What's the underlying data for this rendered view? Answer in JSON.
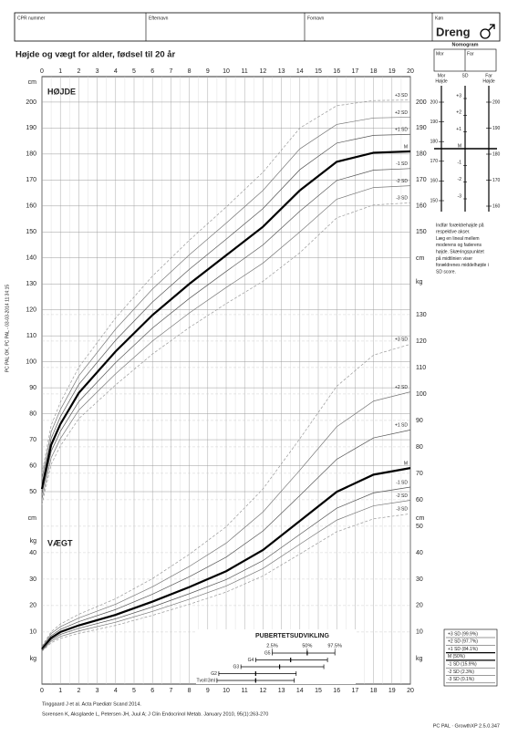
{
  "header": {
    "fields": [
      "CPR nummer",
      "Efternavn",
      "Fornavn",
      "Køn"
    ],
    "sex": "Dreng"
  },
  "title": "Højde og vægt for alder, fødsel til 20 år",
  "side_note": "PC PAL OK, PC PAL - 03-03-2014 11:34:15",
  "chart_data": [
    {
      "type": "line",
      "label": "HØJDE",
      "y_unit": "cm",
      "x": [
        0,
        0.5,
        1,
        2,
        4,
        6,
        8,
        10,
        12,
        14,
        16,
        18,
        20
      ],
      "xlim": [
        0,
        20
      ],
      "xticks": [
        0,
        1,
        2,
        3,
        4,
        5,
        6,
        7,
        8,
        9,
        10,
        11,
        12,
        13,
        14,
        15,
        16,
        17,
        18,
        19,
        20
      ],
      "ylim": [
        -23.4,
        208.4
      ],
      "yticks": [
        50,
        60,
        70,
        80,
        90,
        100,
        110,
        120,
        130,
        140,
        150,
        160,
        170,
        180,
        190,
        200
      ],
      "yticks_right": [
        150,
        160,
        170,
        180,
        190,
        200
      ],
      "grid": true,
      "series": [
        {
          "name": "+3 SD",
          "color": "#999999",
          "dashed": true,
          "width": 0.7,
          "values": [
            57,
            75.5,
            84.4,
            97.9,
            116.9,
            133,
            146.8,
            159.6,
            173,
            190,
            198.6,
            200.6,
            200.8
          ]
        },
        {
          "name": "+2 SD",
          "color": "#777777",
          "dashed": false,
          "width": 0.7,
          "values": [
            55,
            73,
            81.6,
            94.6,
            112.6,
            128,
            141.2,
            153.4,
            166,
            182,
            191.4,
            193.9,
            194.2
          ]
        },
        {
          "name": "+1 SD",
          "color": "#555555",
          "dashed": false,
          "width": 0.7,
          "values": [
            53,
            70.5,
            78.8,
            91.3,
            108.3,
            123,
            135.6,
            147.2,
            159,
            174,
            184.2,
            187.2,
            187.6
          ]
        },
        {
          "name": "M",
          "color": "#000000",
          "dashed": false,
          "width": 2.2,
          "values": [
            51,
            68,
            76,
            88,
            104,
            118,
            130,
            141,
            152,
            166,
            177,
            180.5,
            181
          ]
        },
        {
          "name": "-1 SD",
          "color": "#555555",
          "dashed": false,
          "width": 0.7,
          "values": [
            49,
            65.5,
            73.2,
            84.7,
            99.7,
            113,
            124.4,
            134.8,
            145,
            158,
            169.8,
            173.8,
            174.4
          ]
        },
        {
          "name": "-2 SD",
          "color": "#777777",
          "dashed": false,
          "width": 0.7,
          "values": [
            47,
            63,
            70.4,
            81.4,
            95.4,
            108,
            118.8,
            128.6,
            138,
            150,
            162.6,
            167.1,
            167.8
          ]
        },
        {
          "name": "-3 SD",
          "color": "#999999",
          "dashed": true,
          "width": 0.7,
          "values": [
            45,
            60.5,
            67.6,
            78.1,
            91.1,
            103,
            113.2,
            122.4,
            131,
            142,
            155.4,
            160.4,
            161.2
          ]
        }
      ]
    },
    {
      "type": "line",
      "label": "VÆGT",
      "y_unit": "kg",
      "x": [
        0,
        0.5,
        1,
        2,
        4,
        6,
        8,
        10,
        12,
        14,
        16,
        18,
        20
      ],
      "xlim": [
        0,
        20
      ],
      "ylim": [
        -9,
        218.6
      ],
      "yticks": [
        10,
        20,
        30,
        40,
        50,
        60,
        70,
        80,
        90,
        100,
        110,
        120,
        130
      ],
      "yticks_left": [
        10,
        20,
        30,
        40
      ],
      "grid": true,
      "series": [
        {
          "name": "+3 SD",
          "color": "#999999",
          "dashed": true,
          "width": 0.7,
          "values": [
            4.6,
            10.1,
            13,
            16.7,
            22.6,
            30.2,
            39.4,
            49.8,
            64.1,
            83.1,
            102.9,
            114.7,
            118.8
          ]
        },
        {
          "name": "+2 SD",
          "color": "#777777",
          "dashed": false,
          "width": 0.7,
          "values": [
            4.2,
            9.4,
            12,
            15.3,
            20.5,
            27.1,
            34.8,
            43.6,
            55.4,
            71.2,
            87.6,
            97.3,
            100.8
          ]
        },
        {
          "name": "+1 SD",
          "color": "#555555",
          "dashed": false,
          "width": 0.7,
          "values": [
            3.9,
            8.6,
            11,
            13.9,
            18.5,
            24.3,
            30.9,
            38.3,
            48.2,
            61.6,
            75.3,
            83.4,
            86.4
          ]
        },
        {
          "name": "M",
          "color": "#000000",
          "dashed": false,
          "width": 2.2,
          "values": [
            3.5,
            7.8,
            10,
            12.5,
            16.5,
            21.5,
            27,
            33,
            41,
            52,
            63,
            69.5,
            72
          ]
        },
        {
          "name": "-1 SD",
          "color": "#555555",
          "dashed": false,
          "width": 0.7,
          "values": [
            3.2,
            7.1,
            9.1,
            11.4,
            15,
            19.5,
            24.5,
            29.8,
            37,
            46.9,
            56.8,
            62.6,
            64.8
          ]
        },
        {
          "name": "-2 SD",
          "color": "#777777",
          "dashed": false,
          "width": 0.7,
          "values": [
            2.9,
            6.5,
            8.3,
            10.4,
            13.7,
            17.8,
            22.4,
            27.4,
            34,
            43.2,
            52.3,
            57.7,
            59.8
          ]
        },
        {
          "name": "-3 SD",
          "color": "#999999",
          "dashed": true,
          "width": 0.7,
          "values": [
            2.7,
            5.9,
            7.6,
            9.5,
            12.5,
            16.3,
            20.5,
            25.1,
            31.2,
            39.5,
            47.9,
            52.8,
            54.7
          ]
        }
      ]
    },
    {
      "type": "range",
      "title": "PUBERTETSUDVIKLING",
      "xlim": [
        0,
        20
      ],
      "percentile_labels": [
        "2.5%",
        "50%",
        "97.5%"
      ],
      "categories": [
        "G5",
        "G4",
        "G3",
        "G2",
        "Tvol=3ml"
      ],
      "low": [
        12.5,
        11.6,
        10.8,
        9.6,
        9.5
      ],
      "mid": [
        14.4,
        13.5,
        12.9,
        11.6,
        11.6
      ],
      "high": [
        15.9,
        15.5,
        15.3,
        13.8,
        13.7
      ]
    }
  ],
  "sd_legend": [
    "+3 SD (99.9%)",
    "+2 SD (97.7%)",
    "+1 SD (84.1%)",
    "M (50%)",
    "-1 SD (15.9%)",
    "-2 SD (2.3%)",
    "-3 SD (0.1%)"
  ],
  "nomogram": {
    "title": "Nomogram",
    "parents": [
      "Mor",
      "Far"
    ],
    "axis_titles": [
      [
        "Mor",
        "Højde"
      ],
      [
        "SD"
      ],
      [
        "Far",
        "Højde"
      ]
    ],
    "mother_lim": [
      150,
      200
    ],
    "mother_ticks": [
      150,
      160,
      170,
      180,
      190,
      200
    ],
    "father_lim": [
      160,
      200
    ],
    "father_ticks": [
      160,
      170,
      180,
      190,
      200
    ],
    "sd_lim": [
      -3,
      3
    ],
    "sd_ticks": [
      {
        "value": 3,
        "label": "+3"
      },
      {
        "value": 2,
        "label": "+2"
      },
      {
        "value": 1,
        "label": "+1"
      },
      {
        "value": 0,
        "label": "M"
      },
      -1,
      -2,
      -3
    ],
    "text": [
      "Indfør forældrehøjde på",
      "respektive akser.",
      "Læg en lineal mellem",
      "moderens og faderens",
      "højde. Skæringspunktet",
      "på midtlinien viser",
      "forældrenes middelhøjde i",
      "SD score."
    ]
  },
  "footer": {
    "refs": [
      "Tinggaard J et al. Acta Paediatr Scand 2014.",
      "Sorensen K, Aksglaede L, Petersen JH, Juul A; J Clin Endocrinol Metab. January 2010, 95(1):263-270"
    ],
    "software": "PC PAL · GrowthXP 2.5.0.347"
  }
}
